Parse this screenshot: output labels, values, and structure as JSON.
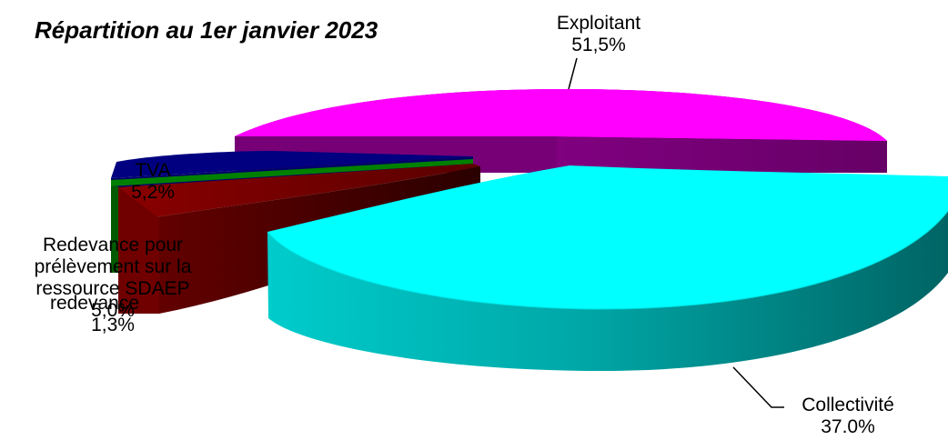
{
  "chart_data": {
    "type": "pie",
    "title": "Répartition au 1er janvier 2023",
    "slices": [
      {
        "label": "Exploitant",
        "value_label": "51,5%",
        "value": 51.5,
        "color": "#ff00ff"
      },
      {
        "label": "Collectivité",
        "value_label": "37.0%",
        "value": 37.0,
        "color": "#00ffff"
      },
      {
        "label": "Redevance pour prélèvement sur la ressource SDAEP",
        "value_label": "5,0%",
        "value": 5.0,
        "color": "#800000"
      },
      {
        "label": "redevance",
        "value_label": "1,3%",
        "value": 1.3,
        "color": "#008000"
      },
      {
        "label": "TVA",
        "value_label": "5,2%",
        "value": 5.2,
        "color": "#000080"
      }
    ]
  }
}
